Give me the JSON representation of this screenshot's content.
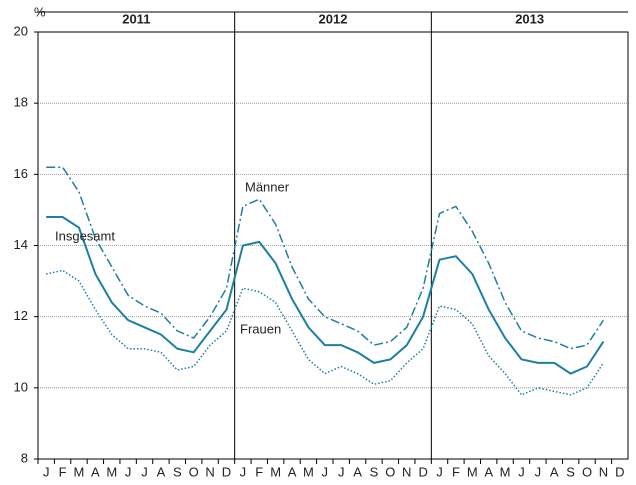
{
  "chart_data": {
    "type": "line",
    "y_unit_label": "%",
    "year_labels": [
      "2011",
      "2012",
      "2013"
    ],
    "categories": [
      "J",
      "F",
      "M",
      "A",
      "M",
      "J",
      "J",
      "A",
      "S",
      "O",
      "N",
      "D",
      "J",
      "F",
      "M",
      "A",
      "M",
      "J",
      "J",
      "A",
      "S",
      "O",
      "N",
      "D",
      "J",
      "F",
      "M",
      "A",
      "M",
      "J",
      "J",
      "A",
      "S",
      "O",
      "N",
      "D"
    ],
    "series": [
      {
        "name": "Männer",
        "color": "#1c7fa3",
        "style": "dashdot",
        "values": [
          16.2,
          16.2,
          15.5,
          14.2,
          13.4,
          12.6,
          12.3,
          12.1,
          11.6,
          11.4,
          12.0,
          12.8,
          15.1,
          15.3,
          14.6,
          13.4,
          12.5,
          12.0,
          11.8,
          11.6,
          11.2,
          11.3,
          11.7,
          12.8,
          14.9,
          15.1,
          14.4,
          13.5,
          12.4,
          11.6,
          11.4,
          11.3,
          11.1,
          11.2,
          11.9,
          null
        ]
      },
      {
        "name": "Insgesamt",
        "color": "#1c7fa3",
        "style": "solid",
        "values": [
          14.8,
          14.8,
          14.5,
          13.2,
          12.4,
          11.9,
          11.7,
          11.5,
          11.1,
          11.0,
          11.6,
          12.2,
          14.0,
          14.1,
          13.5,
          12.5,
          11.7,
          11.2,
          11.2,
          11.0,
          10.7,
          10.8,
          11.2,
          12.0,
          13.6,
          13.7,
          13.2,
          12.2,
          11.4,
          10.8,
          10.7,
          10.7,
          10.4,
          10.6,
          11.3,
          null
        ]
      },
      {
        "name": "Frauen",
        "color": "#1c7fa3",
        "style": "dotted",
        "values": [
          13.2,
          13.3,
          13.0,
          12.2,
          11.5,
          11.1,
          11.1,
          11.0,
          10.5,
          10.6,
          11.2,
          11.6,
          12.8,
          12.7,
          12.4,
          11.6,
          10.8,
          10.4,
          10.6,
          10.4,
          10.1,
          10.2,
          10.7,
          11.1,
          12.3,
          12.2,
          11.8,
          10.9,
          10.4,
          9.8,
          10.0,
          9.9,
          9.8,
          10.0,
          10.7,
          null
        ]
      }
    ],
    "ylim": [
      8,
      20
    ],
    "yticks": [
      8,
      10,
      12,
      14,
      16,
      18,
      20
    ],
    "grid": true
  }
}
